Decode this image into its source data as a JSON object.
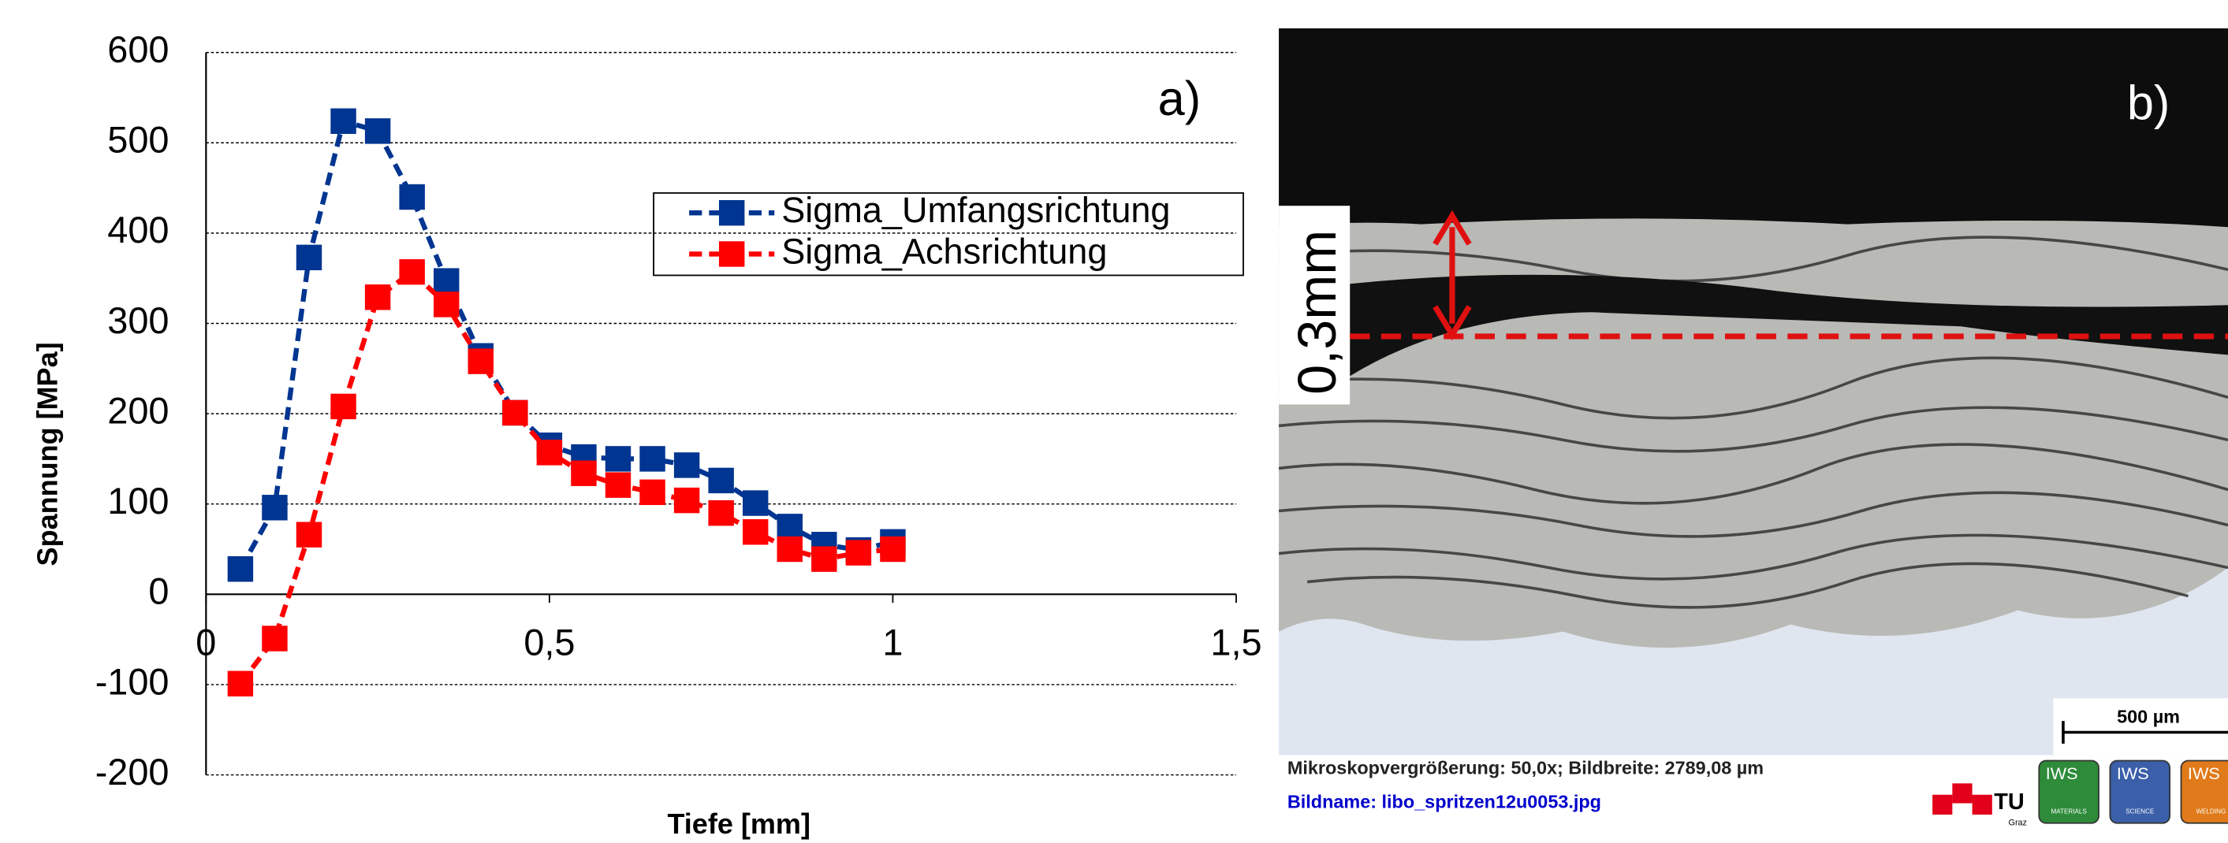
{
  "chart_data": {
    "type": "line",
    "x_label": "Tiefe [mm]",
    "y_label": "Spannung [MPa]",
    "panel_label": "a)",
    "x": [
      0.05,
      0.1,
      0.15,
      0.2,
      0.25,
      0.3,
      0.35,
      0.4,
      0.45,
      0.5,
      0.55,
      0.6,
      0.65,
      0.7,
      0.75,
      0.8,
      0.85,
      0.9,
      0.95,
      1.0
    ],
    "series": [
      {
        "name": "Sigma_Umfangsrichtung",
        "color": "#003591",
        "values": [
          28,
          96,
          373,
          524,
          513,
          440,
          347,
          264,
          201,
          165,
          152,
          150,
          150,
          143,
          126,
          101,
          75,
          55,
          49,
          58
        ]
      },
      {
        "name": "Sigma_Achsrichtung",
        "color": "#ff0000",
        "values": [
          -99,
          -49,
          66,
          208,
          329,
          357,
          321,
          258,
          201,
          157,
          134,
          121,
          113,
          104,
          90,
          69,
          50,
          39,
          46,
          50
        ]
      }
    ],
    "xlim": [
      0,
      1.5
    ],
    "xticks": [
      0,
      {
        "value": 0.5,
        "label": "0,5"
      },
      1,
      {
        "value": 1.5,
        "label": "1,5"
      }
    ],
    "ylim": [
      -200,
      600
    ],
    "yticks": [
      -200,
      -100,
      0,
      100,
      200,
      300,
      400,
      500,
      600
    ],
    "grid": true
  },
  "image_panel": {
    "panel_label": "b)",
    "depth_label": "0,3mm",
    "scale_bar": "500 µm",
    "caption": "Mikroskopvergrößerung: 50,0x; Bildbreite: 2789,08 µm",
    "filename": "Bildname: libo_spritzen12u0053.jpg",
    "logo_tu": "TU",
    "logo_graz": "Graz",
    "badges": [
      {
        "title": "IWS",
        "sub": "MATERIALS"
      },
      {
        "title": "IWS",
        "sub": "SCIENCE"
      },
      {
        "title": "IWS",
        "sub": "WELDING"
      }
    ]
  }
}
